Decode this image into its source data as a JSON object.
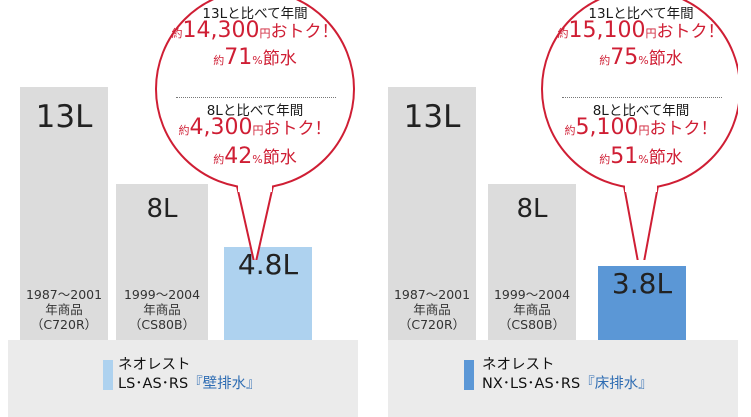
{
  "chart_data": [
    {
      "type": "bar",
      "unit": "L",
      "categories": [
        "1987〜2001\n年商品\n（C720R）",
        "1999〜2004\n年商品\n（CS80B）",
        "ネオレスト LS・AS・RS『壁排水』"
      ],
      "values": [
        13,
        8,
        4.8
      ],
      "value_labels": [
        "13L",
        "8L",
        "4.8L"
      ],
      "colors": [
        "#dcdcdc",
        "#dcdcdc",
        "#aed2ef"
      ],
      "ylim": [
        0,
        13
      ],
      "legend": {
        "name_line1": "ネオレスト",
        "name_line2_plain": "LS･AS･RS",
        "name_line2_accent": "『壁排水』",
        "color": "#aed2ef"
      },
      "callout": {
        "vs_13": {
          "heading": "13Lと比べて年間",
          "approx": "約",
          "saving_value": "14,300",
          "saving_suffix_small": "円",
          "saving_suffix": "おトク！",
          "water_value": "71",
          "water_suffix_small": "%",
          "water_suffix": "節水"
        },
        "vs_8": {
          "heading": "8Lと比べて年間",
          "approx": "約",
          "saving_value": "4,300",
          "saving_suffix_small": "円",
          "saving_suffix": "おトク！",
          "water_value": "42",
          "water_suffix_small": "%",
          "water_suffix": "節水"
        }
      }
    },
    {
      "type": "bar",
      "unit": "L",
      "categories": [
        "1987〜2001\n年商品\n（C720R）",
        "1999〜2004\n年商品\n（CS80B）",
        "ネオレスト NX・LS・AS・RS『床排水』"
      ],
      "values": [
        13,
        8,
        3.8
      ],
      "value_labels": [
        "13L",
        "8L",
        "3.8L"
      ],
      "colors": [
        "#dcdcdc",
        "#dcdcdc",
        "#5b97d6"
      ],
      "ylim": [
        0,
        13
      ],
      "legend": {
        "name_line1": "ネオレスト",
        "name_line2_plain": "NX･LS･AS･RS",
        "name_line2_accent": "『床排水』",
        "color": "#5b97d6"
      },
      "callout": {
        "vs_13": {
          "heading": "13Lと比べて年間",
          "approx": "約",
          "saving_value": "15,100",
          "saving_suffix_small": "円",
          "saving_suffix": "おトク！",
          "water_value": "75",
          "water_suffix_small": "%",
          "water_suffix": "節水"
        },
        "vs_8": {
          "heading": "8Lと比べて年間",
          "approx": "約",
          "saving_value": "5,100",
          "saving_suffix_small": "円",
          "saving_suffix": "おトク！",
          "water_value": "51",
          "water_suffix_small": "%",
          "water_suffix": "節水"
        }
      }
    }
  ]
}
